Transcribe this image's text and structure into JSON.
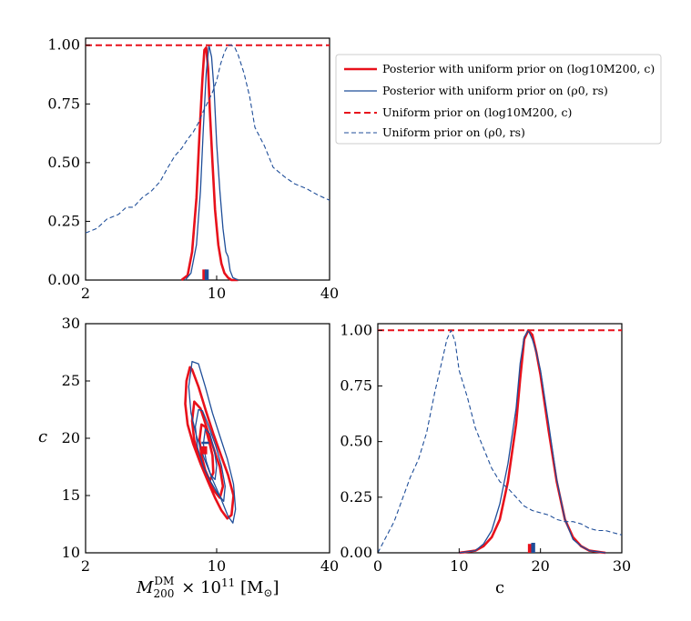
{
  "colors": {
    "red": "#e8111b",
    "blue": "#1f4e99",
    "axis": "#000000"
  },
  "legend": {
    "position": "upper-right-of-top-panel",
    "entries": [
      {
        "label": "Posterior with uniform prior on (log10M200, c)",
        "color": "#e8111b",
        "style": "solid-thick"
      },
      {
        "label": "Posterior with uniform prior on (ρ0, rs)",
        "color": "#1f4e99",
        "style": "solid-thin"
      },
      {
        "label": "Uniform prior on (log10M200, c)",
        "color": "#e8111b",
        "style": "dashed-thick"
      },
      {
        "label": "Uniform prior on (ρ0, rs)",
        "color": "#1f4e99",
        "style": "dashed-thin"
      }
    ]
  },
  "chart_data": [
    {
      "id": "mass-marginal",
      "type": "line",
      "xscale": "log",
      "xlim": [
        2,
        40
      ],
      "ylim": [
        0,
        1.03
      ],
      "xticks": [
        2,
        10,
        40
      ],
      "xticklabels": [
        "2",
        "10",
        "40"
      ],
      "yticks": [
        0,
        0.25,
        0.5,
        0.75,
        1.0
      ],
      "yticklabels": [
        "0.00",
        "0.25",
        "0.50",
        "0.75",
        "1.00"
      ],
      "xlabel": "",
      "ylabel": "",
      "series": [
        {
          "name": "Posterior with uniform prior on (log10M200, c)",
          "color": "#e8111b",
          "style": "solid-thick",
          "x": [
            6.5,
            7.0,
            7.4,
            7.8,
            8.1,
            8.4,
            8.6,
            8.8,
            9.0,
            9.2,
            9.5,
            9.8,
            10.2,
            10.6,
            11.0,
            11.5,
            12.0,
            13.0
          ],
          "y": [
            0.0,
            0.02,
            0.12,
            0.35,
            0.62,
            0.86,
            0.98,
            0.99,
            0.9,
            0.72,
            0.5,
            0.3,
            0.15,
            0.07,
            0.03,
            0.01,
            0.0,
            0.0
          ]
        },
        {
          "name": "Posterior with uniform prior on (ρ0, rs)",
          "color": "#1f4e99",
          "style": "solid-thin",
          "x": [
            6.8,
            7.3,
            7.8,
            8.2,
            8.5,
            8.8,
            9.1,
            9.4,
            9.7,
            10.0,
            10.4,
            10.8,
            11.2,
            11.5,
            11.8,
            12.2,
            13.0
          ],
          "y": [
            0.0,
            0.03,
            0.15,
            0.38,
            0.65,
            0.88,
            1.0,
            0.95,
            0.8,
            0.58,
            0.38,
            0.22,
            0.12,
            0.1,
            0.04,
            0.01,
            0.0
          ]
        },
        {
          "name": "Uniform prior on (log10M200, c)",
          "color": "#e8111b",
          "style": "dashed-thick",
          "x": [
            2,
            40
          ],
          "y": [
            1.0,
            1.0
          ]
        },
        {
          "name": "Uniform prior on (ρ0, rs)",
          "color": "#1f4e99",
          "style": "dashed-thin",
          "x": [
            2.0,
            2.3,
            2.6,
            3.0,
            3.3,
            3.6,
            4.0,
            4.5,
            5.0,
            5.5,
            6.0,
            6.5,
            7.0,
            7.5,
            8.0,
            8.5,
            9.0,
            9.5,
            10.0,
            10.5,
            11.0,
            11.5,
            12.0,
            12.5,
            13.0,
            14.0,
            15.0,
            16.0,
            18.0,
            20.0,
            23.0,
            26.0,
            30.0,
            35.0,
            40.0
          ],
          "y": [
            0.2,
            0.22,
            0.26,
            0.28,
            0.31,
            0.31,
            0.35,
            0.38,
            0.42,
            0.48,
            0.53,
            0.56,
            0.6,
            0.63,
            0.67,
            0.72,
            0.76,
            0.8,
            0.85,
            0.92,
            0.97,
            1.0,
            1.0,
            0.99,
            0.96,
            0.88,
            0.78,
            0.65,
            0.57,
            0.48,
            0.44,
            0.41,
            0.39,
            0.36,
            0.34
          ]
        }
      ],
      "markers": [
        {
          "x": 8.6,
          "y0": 0.0,
          "y1": 0.045,
          "color": "#e8111b"
        },
        {
          "x": 8.85,
          "y0": 0.0,
          "y1": 0.045,
          "color": "#1f4e99"
        }
      ]
    },
    {
      "id": "joint-contours",
      "type": "contour",
      "xscale": "log",
      "xlim": [
        2,
        40
      ],
      "ylim": [
        10,
        30
      ],
      "xticks": [
        2,
        10,
        40
      ],
      "xticklabels": [
        "2",
        "10",
        "40"
      ],
      "yticks": [
        10,
        15,
        20,
        25,
        30
      ],
      "yticklabels": [
        "10",
        "15",
        "20",
        "25",
        "30"
      ],
      "xlabel": "M200DM × 10^11 [M⊙]",
      "ylabel": "c",
      "contours": [
        {
          "series": "Posterior with uniform prior on (log10M200, c)",
          "color": "#e8111b",
          "style": "solid-thick",
          "level": "outer",
          "x": [
            7.2,
            6.9,
            6.8,
            7.0,
            7.5,
            8.2,
            9.0,
            9.8,
            10.6,
            11.4,
            12.0,
            12.3,
            11.5,
            10.5,
            9.6,
            8.8,
            8.0,
            7.4,
            7.2
          ],
          "y": [
            26.2,
            25.0,
            23.0,
            21.2,
            19.5,
            17.8,
            16.2,
            14.8,
            13.7,
            13.0,
            13.3,
            15.0,
            16.8,
            18.6,
            20.4,
            22.3,
            24.5,
            26.0,
            26.2
          ]
        },
        {
          "series": "Posterior with uniform prior on (log10M200, c)",
          "color": "#e8111b",
          "style": "solid-thick",
          "level": "middle",
          "x": [
            7.6,
            7.4,
            7.6,
            8.1,
            8.8,
            9.6,
            10.4,
            10.8,
            10.4,
            9.6,
            8.9,
            8.2,
            7.6
          ],
          "y": [
            23.2,
            21.5,
            19.8,
            18.2,
            16.8,
            15.5,
            14.8,
            15.8,
            17.5,
            19.2,
            20.8,
            22.6,
            23.2
          ]
        },
        {
          "series": "Posterior with uniform prior on (log10M200, c)",
          "color": "#e8111b",
          "style": "solid-thick",
          "level": "inner",
          "x": [
            8.3,
            8.1,
            8.3,
            8.7,
            9.2,
            9.6,
            9.5,
            9.1,
            8.7,
            8.3
          ],
          "y": [
            21.2,
            19.8,
            18.5,
            17.2,
            16.3,
            17.0,
            18.5,
            19.8,
            21.0,
            21.2
          ]
        },
        {
          "series": "Posterior with uniform prior on (ρ0, rs)",
          "color": "#1f4e99",
          "style": "solid-thin",
          "level": "outer",
          "x": [
            7.4,
            7.1,
            7.3,
            7.8,
            8.6,
            9.5,
            10.5,
            11.5,
            12.2,
            12.6,
            12.3,
            11.4,
            10.4,
            9.5,
            8.7,
            8.0,
            7.4
          ],
          "y": [
            26.7,
            24.5,
            22.2,
            20.2,
            18.2,
            16.4,
            14.8,
            13.2,
            12.6,
            13.8,
            16.0,
            18.2,
            20.2,
            22.2,
            24.5,
            26.5,
            26.7
          ]
        },
        {
          "series": "Posterior with uniform prior on (ρ0, rs)",
          "color": "#1f4e99",
          "style": "solid-thin",
          "level": "middle",
          "x": [
            8.0,
            7.7,
            7.9,
            8.5,
            9.3,
            10.1,
            10.9,
            11.1,
            10.6,
            9.9,
            9.1,
            8.4,
            8.0
          ],
          "y": [
            22.5,
            21.0,
            19.2,
            17.5,
            16.2,
            15.2,
            14.5,
            15.8,
            17.6,
            19.3,
            21.0,
            22.4,
            22.5
          ]
        },
        {
          "series": "Posterior with uniform prior on (ρ0, rs)",
          "color": "#1f4e99",
          "style": "solid-thin",
          "level": "inner",
          "x": [
            8.7,
            8.5,
            8.8,
            9.3,
            9.8,
            10.0,
            9.7,
            9.2,
            8.7
          ],
          "y": [
            20.8,
            19.5,
            18.0,
            16.8,
            16.4,
            17.6,
            19.0,
            20.4,
            20.8
          ]
        }
      ],
      "markers": [
        {
          "x0": 8.2,
          "x1": 8.9,
          "y0": 18.6,
          "y1": 19.3,
          "color": "#e8111b",
          "kind": "box"
        },
        {
          "x0": 8.3,
          "x1": 9.1,
          "y0": 19.5,
          "y1": 19.7,
          "color": "#1f4e99",
          "kind": "box"
        }
      ]
    },
    {
      "id": "concentration-marginal",
      "type": "line",
      "xscale": "linear",
      "xlim": [
        0,
        30
      ],
      "ylim": [
        0,
        1.03
      ],
      "xticks": [
        0,
        10,
        20,
        30
      ],
      "xticklabels": [
        "0",
        "10",
        "20",
        "30"
      ],
      "yticks": [
        0,
        0.25,
        0.5,
        0.75,
        1.0
      ],
      "yticklabels": [
        "0.00",
        "0.25",
        "0.50",
        "0.75",
        "1.00"
      ],
      "xlabel": "c",
      "ylabel": "",
      "series": [
        {
          "name": "Posterior with uniform prior on (log10M200, c)",
          "color": "#e8111b",
          "style": "solid-thick",
          "x": [
            10,
            12,
            13,
            14,
            15,
            16,
            17,
            17.5,
            18,
            18.5,
            19,
            19.5,
            20,
            21,
            22,
            23,
            24,
            25,
            26,
            27,
            28
          ],
          "y": [
            0.0,
            0.01,
            0.03,
            0.07,
            0.15,
            0.32,
            0.58,
            0.78,
            0.96,
            1.0,
            0.98,
            0.9,
            0.8,
            0.55,
            0.32,
            0.15,
            0.07,
            0.03,
            0.01,
            0.005,
            0.0
          ]
        },
        {
          "name": "Posterior with uniform prior on (ρ0, rs)",
          "color": "#1f4e99",
          "style": "solid-thin",
          "x": [
            10,
            12,
            13,
            14,
            15,
            16,
            17,
            17.5,
            18,
            18.5,
            19,
            19.5,
            20,
            21,
            22,
            23,
            24,
            25,
            26,
            27,
            28
          ],
          "y": [
            0.0,
            0.01,
            0.04,
            0.1,
            0.22,
            0.4,
            0.65,
            0.85,
            0.97,
            1.0,
            0.96,
            0.9,
            0.82,
            0.58,
            0.33,
            0.15,
            0.06,
            0.03,
            0.01,
            0.005,
            0.0
          ]
        },
        {
          "name": "Uniform prior on (log10M200, c)",
          "color": "#e8111b",
          "style": "dashed-thick",
          "x": [
            0,
            30
          ],
          "y": [
            1.0,
            1.0
          ]
        },
        {
          "name": "Uniform prior on (ρ0, rs)",
          "color": "#1f4e99",
          "style": "dashed-thin",
          "x": [
            0,
            1,
            2,
            3,
            4,
            5,
            6,
            7,
            7.5,
            8,
            8.5,
            9,
            9.5,
            10,
            11,
            12,
            13,
            14,
            15,
            16,
            17,
            18,
            19,
            20,
            21,
            22,
            23,
            24,
            25,
            26,
            27,
            28,
            29,
            30
          ],
          "y": [
            0.0,
            0.07,
            0.14,
            0.24,
            0.34,
            0.42,
            0.54,
            0.72,
            0.8,
            0.88,
            0.96,
            1.0,
            0.95,
            0.82,
            0.7,
            0.56,
            0.47,
            0.38,
            0.32,
            0.29,
            0.25,
            0.21,
            0.19,
            0.18,
            0.17,
            0.15,
            0.14,
            0.14,
            0.13,
            0.11,
            0.1,
            0.1,
            0.09,
            0.08
          ]
        }
      ],
      "markers": [
        {
          "x": 18.7,
          "y0": 0.0,
          "y1": 0.04,
          "color": "#e8111b"
        },
        {
          "x": 19.1,
          "y0": 0.0,
          "y1": 0.045,
          "color": "#1f4e99"
        }
      ]
    }
  ]
}
